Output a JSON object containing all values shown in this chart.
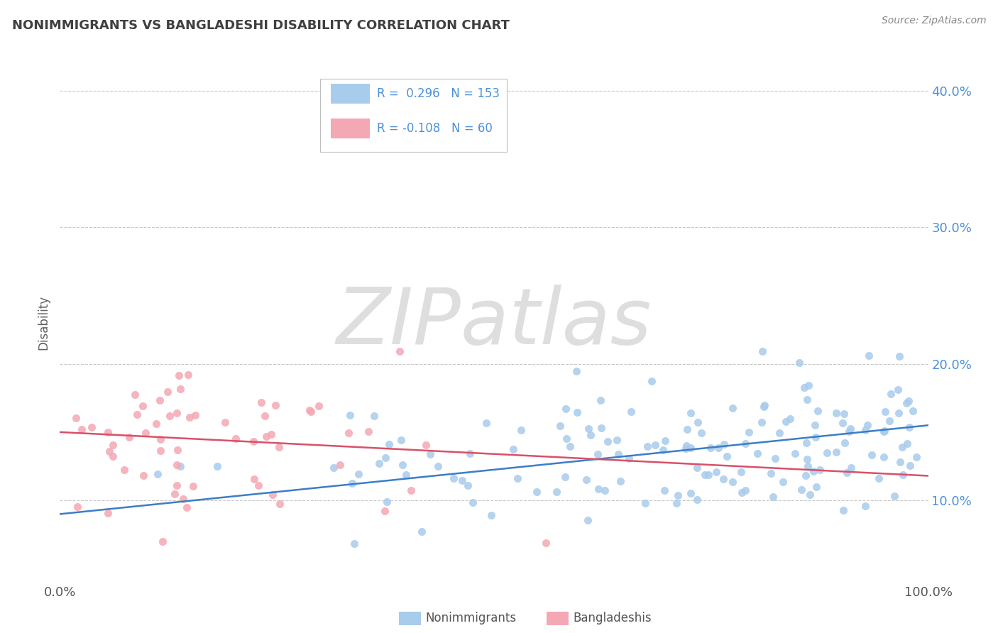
{
  "title": "NONIMMIGRANTS VS BANGLADESHI DISABILITY CORRELATION CHART",
  "source_text": "Source: ZipAtlas.com",
  "ylabel": "Disability",
  "watermark": "ZIPatlas",
  "xlim": [
    0,
    1
  ],
  "ylim": [
    0.04,
    0.42
  ],
  "yticks": [
    0.1,
    0.2,
    0.3,
    0.4
  ],
  "ytick_labels": [
    "10.0%",
    "20.0%",
    "30.0%",
    "40.0%"
  ],
  "xticks": [
    0.0,
    1.0
  ],
  "xtick_labels": [
    "0.0%",
    "100.0%"
  ],
  "blue_R": 0.296,
  "blue_N": 153,
  "pink_R": -0.108,
  "pink_N": 60,
  "blue_color": "#A8CCEC",
  "pink_color": "#F4A8B4",
  "blue_line_color": "#3A7EC6",
  "pink_line_color": "#D95068",
  "legend_label_blue": "Nonimmigrants",
  "legend_label_pink": "Bangladeshis",
  "background_color": "#FFFFFF",
  "grid_color": "#C8C8C8",
  "title_color": "#404040",
  "axis_label_color": "#606060",
  "tick_color": "#4A90D9",
  "watermark_color": "#DEDEDE",
  "dot_size": 55,
  "dot_alpha": 0.85,
  "line_width": 1.8
}
